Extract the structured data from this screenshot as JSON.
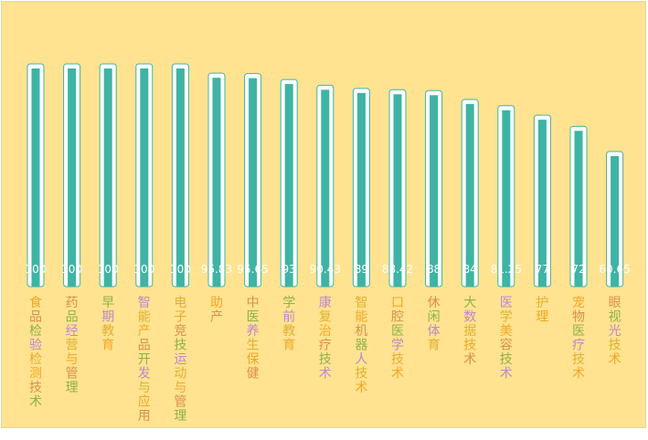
{
  "chart_data": {
    "type": "bar",
    "title": "",
    "xlabel": "",
    "ylabel": "",
    "ylim": [
      0,
      100
    ],
    "grid": false,
    "legend": "none",
    "categories": [
      "食品检验检测技术",
      "药品经营与管理",
      "早期教育",
      "智能产品开发与应用",
      "电子竞技运动与管理",
      "助产",
      "中医养生保健",
      "学前教育",
      "康复治疗技术",
      "智能机器人技术",
      "口腔医学技术",
      "休闲体育",
      "大数据技术",
      "医学美容技术",
      "护理",
      "宠物医疗技术",
      "眼视光技术"
    ],
    "values": [
      100,
      100,
      100,
      100,
      100,
      95.83,
      95.65,
      93,
      90.43,
      89,
      88.42,
      88,
      84,
      81.25,
      77,
      72,
      60.65
    ],
    "value_labels": [
      "100",
      "100",
      "100",
      "100",
      "100",
      "95.83",
      "95.65",
      "93",
      "90.43",
      "89",
      "88.42",
      "88",
      "84",
      "81.25",
      "77",
      "72",
      "60.65"
    ],
    "colors": {
      "background": "#ffe390",
      "bar": "#3eb4a4",
      "bar_outline": "#ffffff",
      "value_label": "#ffffff",
      "category_label_palette": [
        "#f5a623",
        "#d9904a",
        "#8fb04a",
        "#c088c8",
        "#e0b030"
      ]
    }
  }
}
